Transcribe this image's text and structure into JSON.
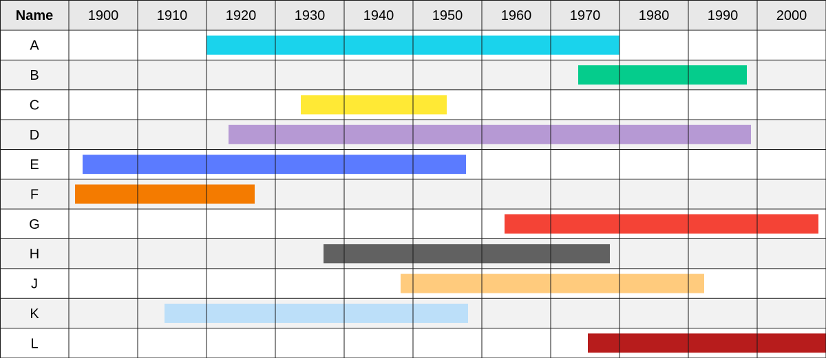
{
  "chart_data": {
    "type": "timeline",
    "name_header": "Name",
    "year_labels": [
      "1900",
      "1910",
      "1920",
      "1930",
      "1940",
      "1950",
      "1960",
      "1970",
      "1980",
      "1990",
      "2000"
    ],
    "axis_start": 1895,
    "axis_end": 2005,
    "rows": [
      {
        "name": "A",
        "start": 1915,
        "end": 1975,
        "color": "#1ad3ec"
      },
      {
        "name": "B",
        "start": 1969,
        "end": 1993.5,
        "color": "#05cc8c"
      },
      {
        "name": "C",
        "start": 1928.7,
        "end": 1949.9,
        "color": "#ffe935"
      },
      {
        "name": "D",
        "start": 1918.2,
        "end": 1994.1,
        "color": "#b699d4"
      },
      {
        "name": "E",
        "start": 1897,
        "end": 1952.7,
        "color": "#5b7bff"
      },
      {
        "name": "F",
        "start": 1895.9,
        "end": 1922,
        "color": "#f47b00"
      },
      {
        "name": "G",
        "start": 1958.3,
        "end": 2003.9,
        "color": "#f44336"
      },
      {
        "name": "H",
        "start": 1932,
        "end": 1973.6,
        "color": "#616161"
      },
      {
        "name": "J",
        "start": 1943.2,
        "end": 1987.3,
        "color": "#ffcb7d"
      },
      {
        "name": "K",
        "start": 1908.9,
        "end": 1953,
        "color": "#bcdff9"
      },
      {
        "name": "L",
        "start": 1970.4,
        "end": 2005,
        "color": "#b71c1c"
      }
    ]
  }
}
